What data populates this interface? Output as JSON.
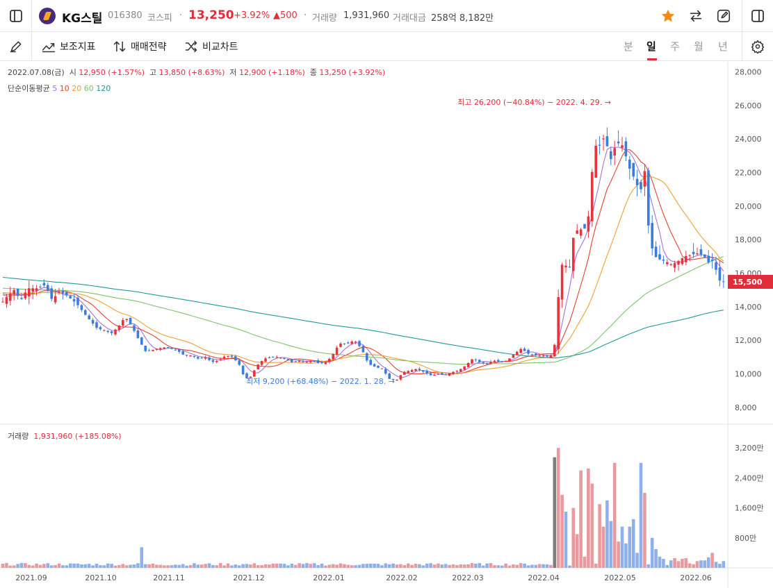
{
  "header": {
    "stock_name": "KG스틸",
    "code": "016380",
    "market": "코스피",
    "price": "13,250",
    "change_pct": "+3.92%",
    "change_abs": "▲500",
    "volume_label": "거래량",
    "volume": "1,931,960",
    "amount_label": "거래대금",
    "amount": "258억 8,182만"
  },
  "toolbar": {
    "indicator_label": "보조지표",
    "strategy_label": "매매전략",
    "compare_label": "비교차트",
    "periods": [
      "분",
      "일",
      "주",
      "월",
      "년"
    ],
    "active_period": "일"
  },
  "ohlc": {
    "date": "2022.07.08(금)",
    "open_label": "시",
    "open": "12,950 (+1.57%)",
    "high_label": "고",
    "high": "13,850 (+8.63%)",
    "low_label": "저",
    "low": "12,900 (+1.18%)",
    "close_label": "종",
    "close": "13,250 (+3.92%)"
  },
  "ma": {
    "label": "단순이동평균",
    "periods": [
      "5",
      "10",
      "20",
      "60",
      "120"
    ],
    "colors": [
      "#a770e0",
      "#e8402f",
      "#f0a030",
      "#7cc46a",
      "#1f9a9a"
    ]
  },
  "volume_panel": {
    "label": "거래량",
    "value": "1,931,960 (+185.08%)"
  },
  "chart_data": {
    "type": "candlestick",
    "price_axis": {
      "ticks": [
        "28,000",
        "26,000",
        "24,000",
        "22,000",
        "20,000",
        "18,000",
        "16,000",
        "14,000",
        "12,000",
        "10,000",
        "8,000"
      ],
      "ylim": [
        7000,
        28600
      ]
    },
    "volume_axis": {
      "ticks": [
        "3,200만",
        "2,400만",
        "1,600만",
        "800만"
      ],
      "ylim": [
        0,
        3500
      ]
    },
    "x_labels": [
      "2021.09",
      "2021.10",
      "2021.11",
      "2021.12",
      "2022.01",
      "2022.02",
      "2022.03",
      "2022.04",
      "2022.05",
      "2022.06"
    ],
    "current_price_tag": "15,500",
    "high_annotation": "최고 26,200 (−40.84%) − 2022. 4. 29. →",
    "low_annotation": "최저 9,200 (+68.48%) − 2022. 1. 28. →",
    "close_path": [
      [
        0,
        14100
      ],
      [
        10,
        14600
      ],
      [
        20,
        15000
      ],
      [
        30,
        14400
      ],
      [
        40,
        15100
      ],
      [
        55,
        15100
      ],
      [
        65,
        15300
      ],
      [
        75,
        14400
      ],
      [
        85,
        14900
      ],
      [
        95,
        14700
      ],
      [
        110,
        14200
      ],
      [
        125,
        13400
      ],
      [
        140,
        12700
      ],
      [
        150,
        12600
      ],
      [
        160,
        12400
      ],
      [
        170,
        12800
      ],
      [
        180,
        13400
      ],
      [
        190,
        12800
      ],
      [
        200,
        12000
      ],
      [
        210,
        11300
      ],
      [
        225,
        11500
      ],
      [
        240,
        11600
      ],
      [
        255,
        11400
      ],
      [
        265,
        11100
      ],
      [
        275,
        11100
      ],
      [
        285,
        10900
      ],
      [
        295,
        11000
      ],
      [
        305,
        10700
      ],
      [
        315,
        10800
      ],
      [
        325,
        11100
      ],
      [
        335,
        11000
      ],
      [
        345,
        10500
      ],
      [
        352,
        9700
      ],
      [
        360,
        9800
      ],
      [
        370,
        10500
      ],
      [
        380,
        10900
      ],
      [
        390,
        11000
      ],
      [
        400,
        11000
      ],
      [
        410,
        10900
      ],
      [
        420,
        10700
      ],
      [
        430,
        10800
      ],
      [
        440,
        10700
      ],
      [
        450,
        10800
      ],
      [
        460,
        10600
      ],
      [
        470,
        10700
      ],
      [
        478,
        11100
      ],
      [
        488,
        11800
      ],
      [
        500,
        11800
      ],
      [
        510,
        12000
      ],
      [
        520,
        11500
      ],
      [
        530,
        10600
      ],
      [
        540,
        10400
      ],
      [
        550,
        10300
      ],
      [
        560,
        9700
      ],
      [
        570,
        9600
      ],
      [
        580,
        10100
      ],
      [
        590,
        10200
      ],
      [
        600,
        10300
      ],
      [
        610,
        10100
      ],
      [
        620,
        9900
      ],
      [
        630,
        10000
      ],
      [
        640,
        9900
      ],
      [
        650,
        10100
      ],
      [
        660,
        10200
      ],
      [
        670,
        10500
      ],
      [
        680,
        10900
      ],
      [
        690,
        10700
      ],
      [
        700,
        10600
      ],
      [
        710,
        10800
      ],
      [
        720,
        10700
      ],
      [
        730,
        10800
      ],
      [
        740,
        11200
      ],
      [
        750,
        11500
      ],
      [
        760,
        11200
      ],
      [
        770,
        11100
      ],
      [
        780,
        11100
      ],
      [
        790,
        11000
      ],
      [
        797,
        11300
      ],
      [
        803,
        14500
      ],
      [
        810,
        17000
      ],
      [
        818,
        15900
      ],
      [
        826,
        18500
      ],
      [
        835,
        18600
      ],
      [
        845,
        18700
      ],
      [
        855,
        23600
      ],
      [
        863,
        23600
      ],
      [
        870,
        24200
      ],
      [
        878,
        22700
      ],
      [
        887,
        23800
      ],
      [
        896,
        23600
      ],
      [
        905,
        22300
      ],
      [
        913,
        21600
      ],
      [
        921,
        20800
      ],
      [
        928,
        22200
      ],
      [
        934,
        18000
      ],
      [
        942,
        17000
      ],
      [
        950,
        16800
      ],
      [
        958,
        16700
      ],
      [
        966,
        16500
      ],
      [
        975,
        16700
      ],
      [
        985,
        17000
      ],
      [
        995,
        17100
      ],
      [
        1005,
        17200
      ],
      [
        1013,
        17000
      ],
      [
        1020,
        16600
      ],
      [
        1027,
        16800
      ],
      [
        1033,
        15600
      ],
      [
        1040,
        15500
      ],
      [
        1045,
        15400
      ]
    ],
    "volume_bars": [
      [
        205,
        550
      ],
      [
        797,
        2950
      ],
      [
        803,
        3200
      ],
      [
        810,
        1950
      ],
      [
        818,
        1500
      ],
      [
        826,
        1600
      ],
      [
        833,
        900
      ],
      [
        838,
        2600
      ],
      [
        845,
        300
      ],
      [
        850,
        2650
      ],
      [
        855,
        2250
      ],
      [
        862,
        1700
      ],
      [
        868,
        1100
      ],
      [
        875,
        1800
      ],
      [
        880,
        1250
      ],
      [
        885,
        2800
      ],
      [
        891,
        700
      ],
      [
        896,
        1100
      ],
      [
        903,
        650
      ],
      [
        908,
        1100
      ],
      [
        914,
        1300
      ],
      [
        919,
        400
      ],
      [
        925,
        2800
      ],
      [
        931,
        2000
      ],
      [
        937,
        800
      ],
      [
        943,
        500
      ],
      [
        950,
        300
      ],
      [
        957,
        240
      ],
      [
        964,
        200
      ],
      [
        970,
        260
      ],
      [
        976,
        180
      ],
      [
        982,
        240
      ],
      [
        989,
        260
      ],
      [
        995,
        120
      ],
      [
        1003,
        180
      ],
      [
        1010,
        200
      ],
      [
        1016,
        200
      ],
      [
        1022,
        280
      ],
      [
        1028,
        400
      ],
      [
        1034,
        160
      ],
      [
        1040,
        180
      ],
      [
        1045,
        250
      ]
    ]
  }
}
